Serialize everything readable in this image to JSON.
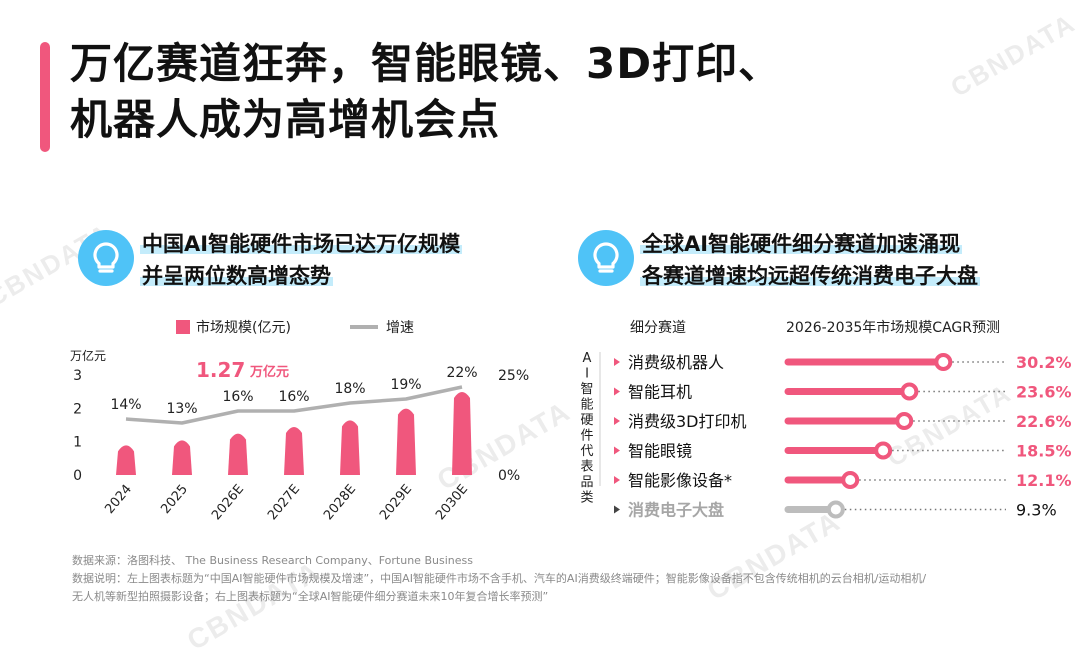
{
  "title": {
    "line1": "万亿赛道狂奔，智能眼镜、3D打印、",
    "line2": "机器人成为高增机会点"
  },
  "watermark": "CBNDATA",
  "left_panel": {
    "heading_line1": "中国AI智能硬件市场已达万亿规模",
    "heading_line2": "并呈两位数高增态势",
    "legend_bar": "市场规模(亿元)",
    "legend_line": "增速",
    "y_unit": "万亿元",
    "callout_value": "1.27",
    "callout_unit": "万亿元"
  },
  "right_panel": {
    "heading_line1": "全球AI智能硬件细分赛道加速涌现",
    "heading_line2": "各赛道增速均远超传统消费电子大盘",
    "col_segment": "细分赛道",
    "col_cagr": "2026-2035年市场规模CAGR预测",
    "group_label": "AI智能硬件代表品类"
  },
  "chart_data": [
    {
      "type": "bar",
      "categories": [
        "2024",
        "2025",
        "2026E",
        "2027E",
        "2028E",
        "2029E",
        "2030E"
      ],
      "series": [
        {
          "name": "市场规模(亿元)",
          "values": [
            0.95,
            1.1,
            1.3,
            1.5,
            1.7,
            2.05,
            2.55
          ],
          "axis": "left"
        },
        {
          "name": "增速",
          "type": "line",
          "values": [
            14,
            13,
            16,
            16,
            18,
            19,
            22
          ],
          "labels": [
            "14%",
            "13%",
            "16%",
            "16%",
            "18%",
            "19%",
            "22%"
          ],
          "axis": "right"
        }
      ],
      "y_ticks": [
        "0",
        "1",
        "2",
        "3"
      ],
      "y2_ticks": [
        "0%",
        "25%"
      ],
      "ylim": [
        0,
        3
      ],
      "y2lim": [
        0,
        25
      ],
      "grid": false,
      "legend": "top"
    },
    {
      "type": "bar",
      "orientation": "horizontal",
      "categories": [
        "消费级机器人",
        "智能耳机",
        "消费级3D打印机",
        "智能眼镜",
        "智能影像设备*",
        "消费电子大盘"
      ],
      "values": [
        30.2,
        23.6,
        22.6,
        18.5,
        12.1,
        9.3
      ],
      "labels": [
        "30.2%",
        "23.6%",
        "22.6%",
        "18.5%",
        "12.1%",
        "9.3%"
      ],
      "xlim": [
        0,
        35
      ],
      "colors": {
        "highlight": "#f0577d",
        "baseline": "#bdbdbd"
      },
      "baseline_category": "消费电子大盘"
    }
  ],
  "colors": {
    "accent": "#f0577d",
    "line": "#b0b0b0",
    "bulb": "#4fc3f7",
    "highlight": "#c4ecfb"
  },
  "footnotes": {
    "line1": "数据来源：洛图科技、 The Business Research Company、Fortune Business",
    "line2": "数据说明：左上图表标题为“中国AI智能硬件市场规模及增速”，中国AI智能硬件市场不含手机、汽车的AI消费级终端硬件；智能影像设备指不包含传统相机的云台相机/运动相机/",
    "line3": "无人机等新型拍照摄影设备；右上图表标题为“全球AI智能硬件细分赛道未来10年复合增长率预测”"
  }
}
